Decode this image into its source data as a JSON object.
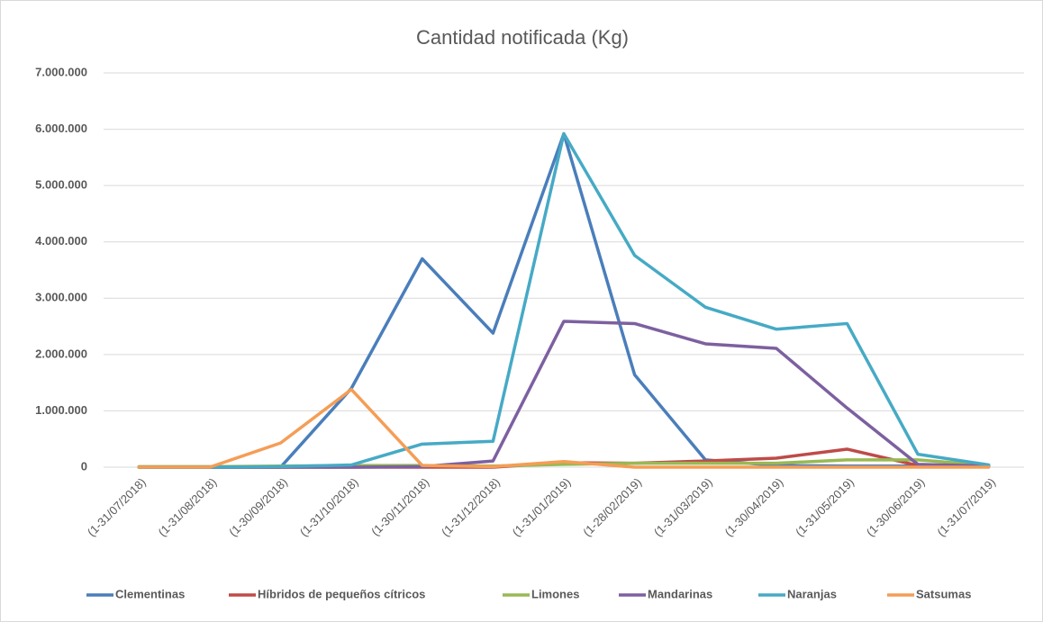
{
  "chart_data": {
    "type": "line",
    "title": "Cantidad notificada  (Kg)",
    "categories": [
      "(1-31/07/2018)",
      "(1-31/08/2018)",
      "(1-30/09/2018)",
      "(1-31/10/2018)",
      "(1-30/11/2018)",
      "(1-31/12/2018)",
      "(1-31/01/2019)",
      "(1-28/02/2019)",
      "(1-31/03/2019)",
      "(1-30/04/2019)",
      "(1-31/05/2019)",
      "(1-30/06/2019)",
      "(1-31/07/2019)"
    ],
    "series": [
      {
        "name": "Clementinas",
        "color": "#4a7ebb",
        "values": [
          0,
          0,
          0,
          1400000,
          3700000,
          2380000,
          5920000,
          1640000,
          130000,
          30000,
          20000,
          20000,
          20000
        ]
      },
      {
        "name": "Híbridos de pequeños cítricos",
        "color": "#be4b48",
        "values": [
          0,
          0,
          0,
          0,
          0,
          0,
          80000,
          70000,
          110000,
          160000,
          320000,
          30000,
          20000
        ]
      },
      {
        "name": "Limones",
        "color": "#98b954",
        "values": [
          10000,
          10000,
          20000,
          30000,
          30000,
          20000,
          50000,
          70000,
          70000,
          70000,
          130000,
          130000,
          30000
        ]
      },
      {
        "name": "Mandarinas",
        "color": "#7d60a0",
        "values": [
          0,
          0,
          0,
          0,
          10000,
          110000,
          2590000,
          2550000,
          2190000,
          2110000,
          1050000,
          50000,
          20000
        ]
      },
      {
        "name": "Naranjas",
        "color": "#46aac5",
        "values": [
          0,
          0,
          10000,
          40000,
          410000,
          460000,
          5920000,
          3760000,
          2840000,
          2450000,
          2550000,
          230000,
          40000
        ]
      },
      {
        "name": "Satsumas",
        "color": "#f59d56",
        "values": [
          0,
          0,
          430000,
          1380000,
          30000,
          10000,
          100000,
          0,
          0,
          0,
          0,
          0,
          0
        ]
      }
    ],
    "ylim": [
      0,
      7000000
    ],
    "yticks": [
      0,
      {
        "value": 1000000,
        "label": "1.000.000"
      },
      {
        "value": 2000000,
        "label": "2.000.000"
      },
      {
        "value": 3000000,
        "label": "3.000.000"
      },
      {
        "value": 4000000,
        "label": "4.000.000"
      },
      {
        "value": 5000000,
        "label": "5.000.000"
      },
      {
        "value": 6000000,
        "label": "6.000.000"
      },
      {
        "value": 7000000,
        "label": "7.000.000"
      }
    ],
    "grid": true,
    "legend": "bottom"
  }
}
